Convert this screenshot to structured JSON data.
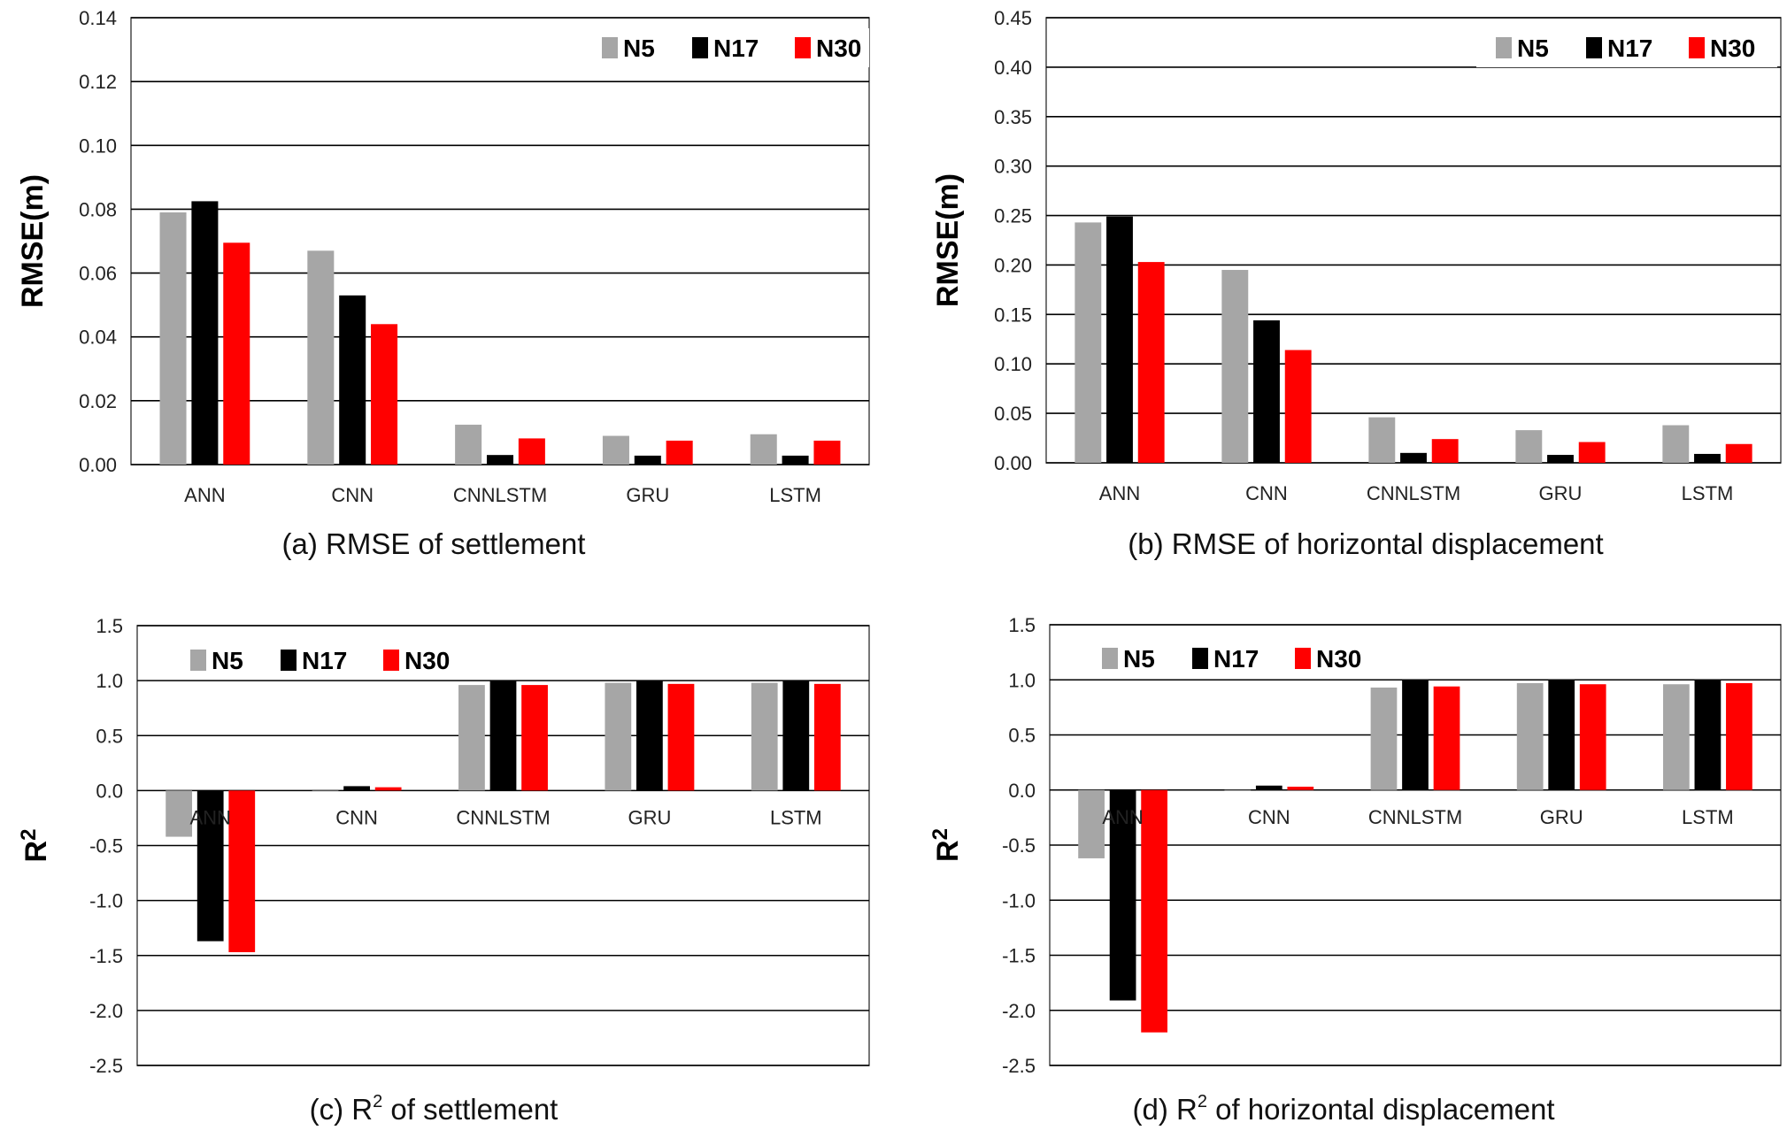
{
  "colors": {
    "N5": "#a6a6a6",
    "N17": "#000000",
    "N30": "#ff0000"
  },
  "chart_data": [
    {
      "type": "bar",
      "caption": "(a) RMSE of settlement",
      "ylabel": "RMSE(m)",
      "ylim": [
        0,
        0.14
      ],
      "yticks": [
        "0.00",
        "0.02",
        "0.04",
        "0.06",
        "0.08",
        "0.10",
        "0.12",
        "0.14"
      ],
      "categories": [
        "ANN",
        "CNN",
        "CNNLSTM",
        "GRU",
        "LSTM"
      ],
      "legend_position": "top-right",
      "grid": true,
      "series": [
        {
          "name": "N5",
          "values": [
            0.079,
            0.067,
            0.0125,
            0.009,
            0.0095
          ]
        },
        {
          "name": "N17",
          "values": [
            0.0825,
            0.053,
            0.003,
            0.0028,
            0.0028
          ]
        },
        {
          "name": "N30",
          "values": [
            0.0695,
            0.044,
            0.0082,
            0.0075,
            0.0075
          ]
        }
      ]
    },
    {
      "type": "bar",
      "caption": "(b) RMSE of horizontal displacement",
      "ylabel": "RMSE(m)",
      "ylim": [
        0,
        0.45
      ],
      "yticks": [
        "0.00",
        "0.05",
        "0.10",
        "0.15",
        "0.20",
        "0.25",
        "0.30",
        "0.35",
        "0.40",
        "0.45"
      ],
      "categories": [
        "ANN",
        "CNN",
        "CNNLSTM",
        "GRU",
        "LSTM"
      ],
      "legend_position": "top-right",
      "grid": true,
      "series": [
        {
          "name": "N5",
          "values": [
            0.243,
            0.195,
            0.046,
            0.033,
            0.038
          ]
        },
        {
          "name": "N17",
          "values": [
            0.249,
            0.144,
            0.01,
            0.008,
            0.009
          ]
        },
        {
          "name": "N30",
          "values": [
            0.203,
            0.114,
            0.024,
            0.021,
            0.019
          ]
        }
      ]
    },
    {
      "type": "bar",
      "caption_prefix": "(c) R",
      "caption_sup": "2",
      "caption_suffix": " of settlement",
      "ylabel": "R",
      "ylabel_sup": "2",
      "ylim": [
        -2.5,
        1.5
      ],
      "yticks": [
        "-2.5",
        "-2.0",
        "-1.5",
        "-1.0",
        "-0.5",
        "0.0",
        "0.5",
        "1.0",
        "1.5"
      ],
      "categories": [
        "ANN",
        "CNN",
        "CNNLSTM",
        "GRU",
        "LSTM"
      ],
      "legend_position": "top-left",
      "grid": true,
      "series": [
        {
          "name": "N5",
          "values": [
            -0.42,
            0.0,
            0.96,
            0.98,
            0.98
          ]
        },
        {
          "name": "N17",
          "values": [
            -1.37,
            0.04,
            1.0,
            1.0,
            1.0
          ]
        },
        {
          "name": "N30",
          "values": [
            -1.47,
            0.03,
            0.96,
            0.97,
            0.97
          ]
        }
      ]
    },
    {
      "type": "bar",
      "caption_prefix": "(d) R",
      "caption_sup": "2",
      "caption_suffix": " of horizontal displacement",
      "ylabel": "R",
      "ylabel_sup": "2",
      "ylim": [
        -2.5,
        1.5
      ],
      "yticks": [
        "-2.5",
        "-2.0",
        "-1.5",
        "-1.0",
        "-0.5",
        "0.0",
        "0.5",
        "1.0",
        "1.5"
      ],
      "categories": [
        "ANN",
        "CNN",
        "CNNLSTM",
        "GRU",
        "LSTM"
      ],
      "legend_position": "top-left",
      "grid": true,
      "series": [
        {
          "name": "N5",
          "values": [
            -0.62,
            0.0,
            0.93,
            0.97,
            0.96
          ]
        },
        {
          "name": "N17",
          "values": [
            -1.91,
            0.04,
            1.0,
            1.0,
            1.0
          ]
        },
        {
          "name": "N30",
          "values": [
            -2.2,
            0.03,
            0.94,
            0.96,
            0.97
          ]
        }
      ]
    }
  ]
}
